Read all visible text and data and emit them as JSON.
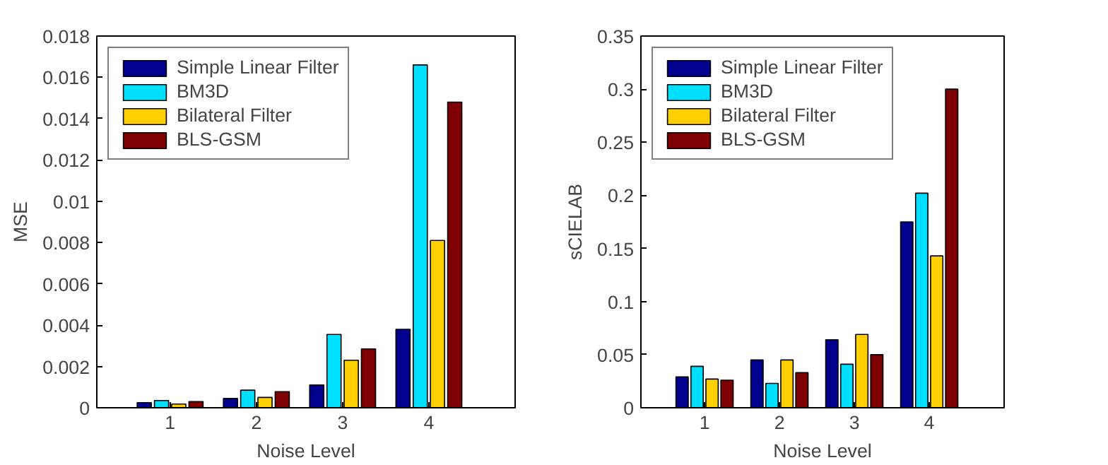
{
  "chart_data": [
    {
      "type": "bar",
      "xlabel": "Noise Level",
      "ylabel": "MSE",
      "categories": [
        "1",
        "2",
        "3",
        "4"
      ],
      "ylim": [
        0,
        0.018
      ],
      "yticks": [
        0,
        0.002,
        0.004,
        0.006,
        0.008,
        0.01,
        0.012,
        0.014,
        0.016,
        0.018
      ],
      "legend": "top left",
      "grid": false,
      "series": [
        {
          "name": "Simple Linear Filter",
          "color": "#00008f",
          "values": [
            0.00025,
            0.00045,
            0.0011,
            0.0038
          ]
        },
        {
          "name": "BM3D",
          "color": "#00dfff",
          "values": [
            0.00035,
            0.00085,
            0.00355,
            0.0166
          ]
        },
        {
          "name": "Bilateral Filter",
          "color": "#ffcf00",
          "values": [
            0.00018,
            0.0005,
            0.0023,
            0.0081
          ]
        },
        {
          "name": "BLS-GSM",
          "color": "#7f0000",
          "values": [
            0.0003,
            0.00078,
            0.00285,
            0.0148
          ]
        }
      ]
    },
    {
      "type": "bar",
      "xlabel": "Noise Level",
      "ylabel": "sCIELAB",
      "categories": [
        "1",
        "2",
        "3",
        "4"
      ],
      "ylim": [
        0,
        0.35
      ],
      "yticks": [
        0,
        0.05,
        0.1,
        0.15,
        0.2,
        0.25,
        0.3,
        0.35
      ],
      "legend": "top left",
      "grid": false,
      "series": [
        {
          "name": "Simple Linear Filter",
          "color": "#00008f",
          "values": [
            0.029,
            0.045,
            0.064,
            0.175
          ]
        },
        {
          "name": "BM3D",
          "color": "#00dfff",
          "values": [
            0.039,
            0.023,
            0.041,
            0.202
          ]
        },
        {
          "name": "Bilateral Filter",
          "color": "#ffcf00",
          "values": [
            0.027,
            0.045,
            0.069,
            0.143
          ]
        },
        {
          "name": "BLS-GSM",
          "color": "#7f0000",
          "values": [
            0.026,
            0.033,
            0.05,
            0.3
          ]
        }
      ]
    }
  ]
}
